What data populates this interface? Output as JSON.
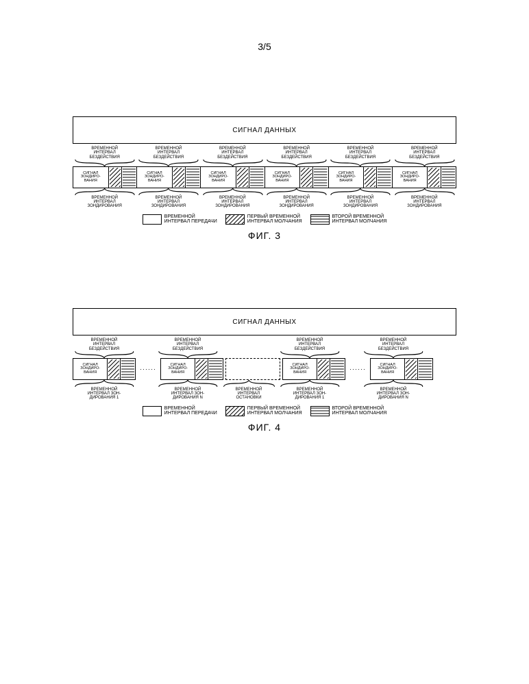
{
  "page": {
    "number": "3/5"
  },
  "colors": {
    "black": "#000000",
    "white": "#ffffff",
    "hatch1_bg": "#ffffff",
    "hatch2_bg": "#ffffff"
  },
  "fig3": {
    "data_signal": "СИГНАЛ ДАННЫХ",
    "top_label": "ВРЕМЕННОЙ\nИНТЕРВАЛ\nБЕЗДЕЙСТВИЯ",
    "slot_text": "СИГНАЛ\nЗОНДИРО-\nВАНИЯ",
    "bottom_label": "ВРЕМЕННОЙ\nИНТЕРВАЛ\nЗОНДИРОВАНИЯ",
    "n_slots": 6,
    "legend": {
      "tx": "ВРЕМЕННОЙ\nИНТЕРВАЛ ПЕРЕДАЧИ",
      "s1": "ПЕРВЫЙ ВРЕМЕННОЙ\nИНТЕРВАЛ МОЛЧАНИЯ",
      "s2": "ВТОРОЙ ВРЕМЕННОЙ\nИНТЕРВАЛ МОЛЧАНИЯ"
    },
    "caption": "ФИГ. 3"
  },
  "fig4": {
    "data_signal": "СИГНАЛ ДАННЫХ",
    "top_label": "ВРЕМЕННОЙ\nИНТЕРВАЛ\nБЕЗДЕЙСТВИЯ",
    "slot_text": "СИГНАЛ\nЗОНДИРО-\nВАНИЯ",
    "bottom_labels": [
      "ВРЕМЕННОЙ\nИНТЕРВАЛ ЗОН-\nДИРОВАНИЯ 1",
      "ВРЕМЕННОЙ\nИНТЕРВАЛ ЗОН-\nДИРОВАНИЯ N",
      "ВРЕМЕННОЙ\nИНТЕРВАЛ\nОСТАНОВКИ",
      "ВРЕМЕННОЙ\nИНТЕРВАЛ ЗОН-\nДИРОВАНИЯ 1",
      "ВРЕМЕННОЙ\nИНТЕРВАЛ ЗОН-\nДИРОВАНИЯ N"
    ],
    "legend": {
      "tx": "ВРЕМЕННОЙ\nИНТЕРВАЛ ПЕРЕДАЧИ",
      "s1": "ПЕРВЫЙ ВРЕМЕННОЙ\nИНТЕРВАЛ МОЛЧАНИЯ",
      "s2": "ВТОРОЙ ВРЕМЕННОЙ\nИНТЕРВАЛ МОЛЧАНИЯ"
    },
    "caption": "ФИГ. 4"
  },
  "patterns": {
    "hatch1": {
      "angle": 45,
      "spacing": 4,
      "stroke": "#000000",
      "strokeWidth": 1
    },
    "hatch2": {
      "angle": 0,
      "spacing": 4,
      "stroke": "#000000",
      "strokeWidth": 1
    }
  }
}
